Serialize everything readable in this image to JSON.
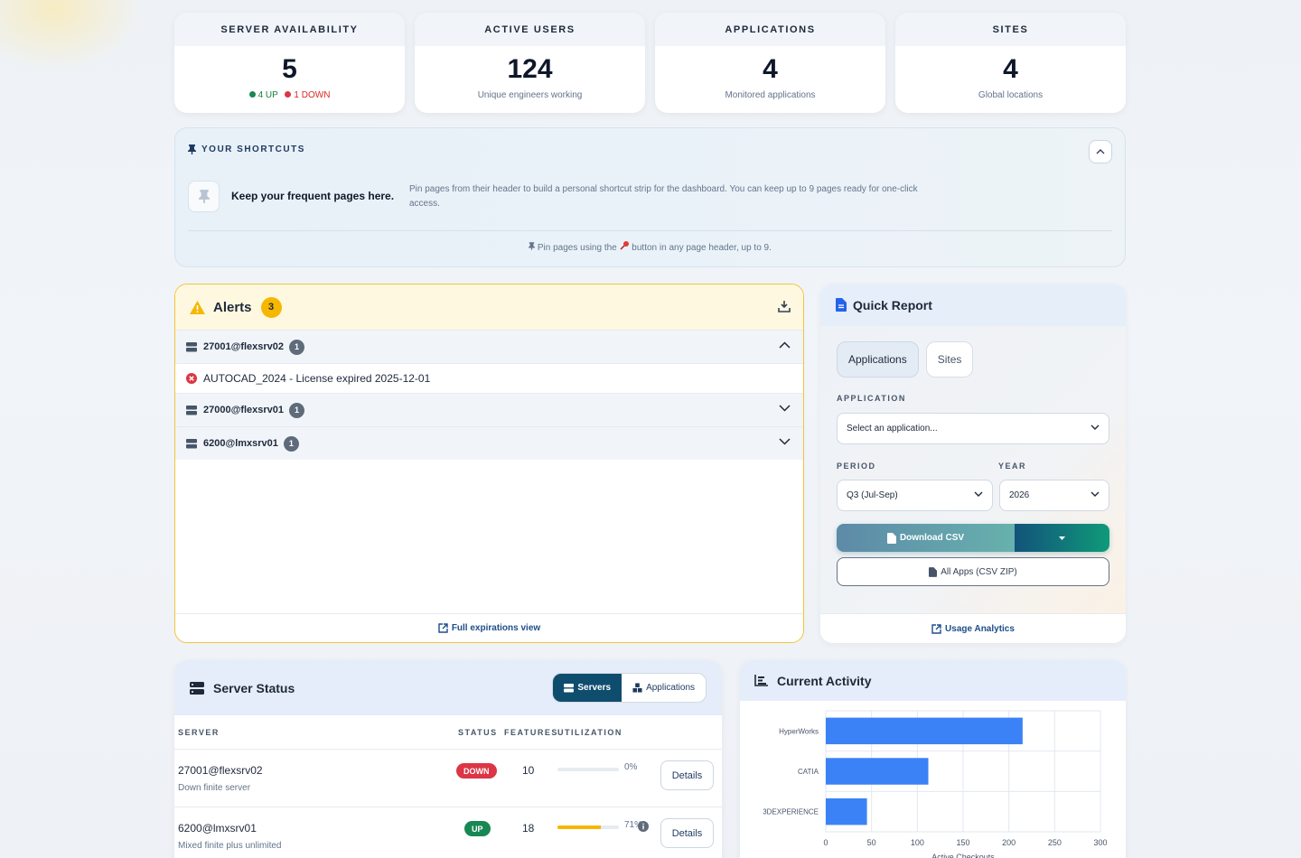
{
  "stats": [
    {
      "title": "SERVER AVAILABILITY",
      "value": "5",
      "up": "4 UP",
      "down": "1 DOWN"
    },
    {
      "title": "ACTIVE USERS",
      "value": "124",
      "sub": "Unique engineers working"
    },
    {
      "title": "APPLICATIONS",
      "value": "4",
      "sub": "Monitored applications"
    },
    {
      "title": "SITES",
      "value": "4",
      "sub": "Global locations"
    }
  ],
  "shortcuts": {
    "title": "YOUR SHORTCUTS",
    "keep": "Keep your frequent pages here.",
    "desc": "Pin pages from their header to build a personal shortcut strip for the dashboard. You can keep up to 9 pages ready for one-click access.",
    "hint_a": "Pin pages using the",
    "hint_b": "button in any page header, up to 9."
  },
  "alerts": {
    "title": "Alerts",
    "count": "3",
    "servers": [
      {
        "name": "27001@flexsrv02",
        "count": "1",
        "expanded": true,
        "items": [
          "AUTOCAD_2024 - License expired 2025-12-01"
        ]
      },
      {
        "name": "27000@flexsrv01",
        "count": "1",
        "expanded": false,
        "items": []
      },
      {
        "name": "6200@lmxsrv01",
        "count": "1",
        "expanded": false,
        "items": []
      }
    ],
    "footer": "Full expirations view"
  },
  "quick_report": {
    "title": "Quick Report",
    "tabs": [
      "Applications",
      "Sites"
    ],
    "application_label": "APPLICATION",
    "application_value": "Select an application...",
    "period_label": "PERIOD",
    "period_value": "Q3 (Jul-Sep)",
    "year_label": "YEAR",
    "year_value": "2026",
    "download_label": "Download CSV",
    "zip_label": "All Apps (CSV ZIP)",
    "footer": "Usage Analytics"
  },
  "server_status": {
    "title": "Server Status",
    "toggle": [
      "Servers",
      "Applications"
    ],
    "columns": [
      "SERVER",
      "STATUS",
      "FEATURES",
      "UTILIZATION"
    ],
    "rows": [
      {
        "name": "27001@flexsrv02",
        "desc": "Down finite server",
        "status": "DOWN",
        "features": "10",
        "util_pct": 0,
        "util": "0%",
        "details": "Details"
      },
      {
        "name": "6200@lmxsrv01",
        "desc": "Mixed finite plus unlimited",
        "status": "UP",
        "features": "18",
        "util_pct": 71,
        "util": "71%",
        "details": "Details"
      }
    ]
  },
  "current_activity": {
    "title": "Current Activity"
  },
  "chart_data": {
    "type": "bar",
    "orientation": "horizontal",
    "categories": [
      "HyperWorks",
      "CATIA",
      "3DEXPERIENCE"
    ],
    "values": [
      215,
      112,
      45
    ],
    "xlabel": "Active Checkouts",
    "xlim": [
      0,
      300
    ],
    "xticks": [
      0,
      50,
      100,
      150,
      200,
      250,
      300
    ],
    "grid": true,
    "color": "#3b82f6"
  },
  "colors": {
    "accent": "#0f4d6e",
    "up": "#198754",
    "down": "#dc3545",
    "warning": "#f5b700",
    "bar": "#3b82f6"
  }
}
